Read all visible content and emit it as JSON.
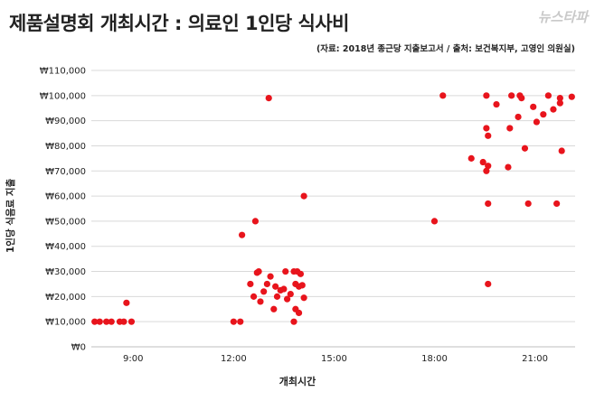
{
  "header": {
    "title": "제품설명회 개최시간 : 의료인 1인당 식사비",
    "source": "(자료: 2018년 종근당 지출보고서 / 출처: 보건복지부, 고영인 의원실)",
    "logo_text": "뉴스타파"
  },
  "colors": {
    "marker": "#e8141c",
    "grid": "#d9d9d9",
    "axis": "#bfbfbf"
  },
  "chart_data": {
    "type": "scatter",
    "xlabel": "개최시간",
    "ylabel": "1인당 식음료 지출",
    "xlim": [
      7.75,
      22.2
    ],
    "ylim": [
      0,
      110000
    ],
    "x_ticks": [
      9,
      12,
      15,
      18,
      21
    ],
    "x_tick_labels": [
      "9:00",
      "12:00",
      "15:00",
      "18:00",
      "21:00"
    ],
    "y_ticks": [
      0,
      10000,
      20000,
      30000,
      40000,
      50000,
      60000,
      70000,
      80000,
      90000,
      100000,
      110000
    ],
    "y_tick_labels": [
      "₩0",
      "₩10,000",
      "₩20,000",
      "₩30,000",
      "₩40,000",
      "₩50,000",
      "₩60,000",
      "₩70,000",
      "₩80,000",
      "₩90,000",
      "₩100,000",
      "₩110,000"
    ],
    "grid": "horizontal",
    "points": [
      [
        7.85,
        10000
      ],
      [
        8.0,
        10000
      ],
      [
        8.2,
        10000
      ],
      [
        8.35,
        10000
      ],
      [
        8.6,
        10000
      ],
      [
        8.72,
        10000
      ],
      [
        8.95,
        10000
      ],
      [
        8.8,
        17500
      ],
      [
        12.0,
        10000
      ],
      [
        12.2,
        10000
      ],
      [
        12.25,
        44500
      ],
      [
        12.65,
        50000
      ],
      [
        12.5,
        25000
      ],
      [
        12.7,
        29500
      ],
      [
        12.75,
        30000
      ],
      [
        12.6,
        20000
      ],
      [
        12.8,
        18000
      ],
      [
        12.9,
        22000
      ],
      [
        13.0,
        25000
      ],
      [
        13.1,
        28000
      ],
      [
        13.2,
        15000
      ],
      [
        13.25,
        24000
      ],
      [
        13.3,
        20000
      ],
      [
        13.4,
        22500
      ],
      [
        13.55,
        30000
      ],
      [
        13.5,
        23000
      ],
      [
        13.6,
        19000
      ],
      [
        13.7,
        21000
      ],
      [
        13.8,
        30000
      ],
      [
        13.85,
        25000
      ],
      [
        13.9,
        30000
      ],
      [
        13.95,
        24000
      ],
      [
        14.0,
        29000
      ],
      [
        14.05,
        24500
      ],
      [
        14.1,
        19500
      ],
      [
        13.85,
        15000
      ],
      [
        13.95,
        13500
      ],
      [
        13.8,
        10000
      ],
      [
        13.05,
        99000
      ],
      [
        14.1,
        60000
      ],
      [
        18.0,
        50000
      ],
      [
        18.25,
        100000
      ],
      [
        19.1,
        75000
      ],
      [
        19.45,
        73500
      ],
      [
        19.6,
        72000
      ],
      [
        19.55,
        70000
      ],
      [
        19.55,
        87000
      ],
      [
        19.6,
        84000
      ],
      [
        19.6,
        57000
      ],
      [
        19.6,
        25000
      ],
      [
        19.55,
        100000
      ],
      [
        19.85,
        96500
      ],
      [
        20.2,
        71500
      ],
      [
        20.25,
        87000
      ],
      [
        20.3,
        100000
      ],
      [
        20.5,
        91500
      ],
      [
        20.55,
        100000
      ],
      [
        20.6,
        99000
      ],
      [
        20.7,
        79000
      ],
      [
        20.8,
        57000
      ],
      [
        20.95,
        95500
      ],
      [
        21.05,
        89500
      ],
      [
        21.25,
        92500
      ],
      [
        21.4,
        100000
      ],
      [
        21.55,
        94500
      ],
      [
        21.65,
        57000
      ],
      [
        21.75,
        99000
      ],
      [
        21.75,
        97000
      ],
      [
        21.8,
        78000
      ],
      [
        22.1,
        99500
      ]
    ]
  }
}
